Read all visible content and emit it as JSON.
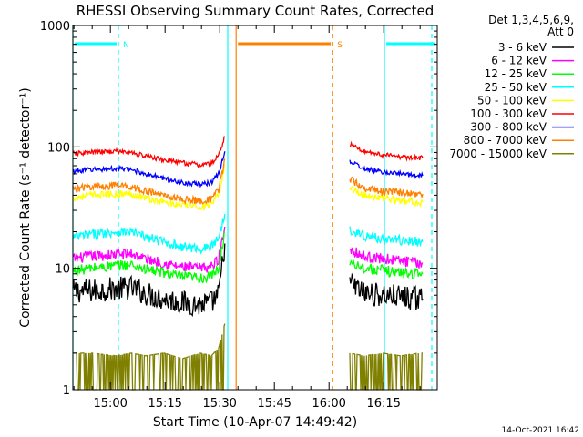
{
  "chart_data": {
    "type": "line",
    "title": "RHESSI Observing Summary Count Rates, Corrected",
    "xlabel": "Start Time (10-Apr-07 14:49:42)",
    "ylabel": "Corrected Count Rate (s⁻¹ detector⁻¹)",
    "yscale": "log",
    "ylim": [
      1,
      1000
    ],
    "xlim_minutes": [
      0,
      100
    ],
    "x_ticks": [
      {
        "t": 10.3,
        "label": "15:00"
      },
      {
        "t": 25.3,
        "label": "15:15"
      },
      {
        "t": 40.3,
        "label": "15:30"
      },
      {
        "t": 55.3,
        "label": "15:45"
      },
      {
        "t": 70.3,
        "label": "16:00"
      },
      {
        "t": 85.3,
        "label": "16:15"
      }
    ],
    "y_ticks": [
      {
        "v": 1,
        "label": "1"
      },
      {
        "v": 10,
        "label": "10"
      },
      {
        "v": 100,
        "label": "100"
      },
      {
        "v": 1000,
        "label": "1000"
      }
    ],
    "legend": {
      "header": [
        "Det 1,3,4,5,6,9,",
        "Att 0"
      ],
      "position": "top-right"
    },
    "series": [
      {
        "name": "3 - 6 keV",
        "color": "#000000",
        "t": [
          0,
          5,
          12,
          16,
          20,
          25,
          30,
          35,
          38,
          40,
          41.7,
          73.5,
          76,
          80,
          85,
          90,
          95,
          96
        ],
        "values": [
          6.5,
          6.5,
          6.8,
          6.9,
          6.2,
          5.6,
          5.2,
          5.0,
          5.2,
          6,
          16,
          null,
          7.5,
          6.2,
          6.0,
          5.8,
          5.6,
          5.6
        ]
      },
      {
        "name": "6 - 12 keV",
        "color": "#ff00ff",
        "t": [
          0,
          5,
          12,
          16,
          20,
          25,
          30,
          35,
          38,
          40,
          41.7,
          73.5,
          76,
          80,
          85,
          90,
          95,
          96
        ],
        "values": [
          12,
          12.5,
          13,
          13.2,
          12,
          11,
          10.2,
          10,
          10.3,
          12,
          22,
          null,
          14.5,
          12.5,
          12,
          11.5,
          11,
          11
        ]
      },
      {
        "name": "12 - 25 keV",
        "color": "#00ff00",
        "t": [
          0,
          5,
          12,
          16,
          20,
          25,
          30,
          35,
          38,
          40,
          41.7,
          73.5,
          76,
          80,
          85,
          90,
          95,
          96
        ],
        "values": [
          9.5,
          10,
          10.5,
          10.7,
          9.8,
          9.2,
          8.5,
          8.3,
          8.5,
          10,
          20,
          null,
          11.5,
          10,
          9.6,
          9.2,
          9,
          9
        ]
      },
      {
        "name": "25 - 50 keV",
        "color": "#00ffff",
        "t": [
          0,
          5,
          12,
          16,
          20,
          25,
          30,
          35,
          38,
          40,
          41.7,
          73.5,
          76,
          80,
          85,
          90,
          95,
          96
        ],
        "values": [
          18,
          19,
          20,
          20,
          18,
          16.5,
          15,
          14.5,
          15,
          18,
          28,
          null,
          21,
          18.5,
          17.5,
          17,
          16.5,
          16.5
        ]
      },
      {
        "name": "50 - 100 keV",
        "color": "#ffff00",
        "t": [
          0,
          5,
          12,
          16,
          20,
          25,
          30,
          35,
          38,
          40,
          41.7,
          73.5,
          76,
          80,
          85,
          90,
          95,
          96
        ],
        "values": [
          38,
          40,
          41,
          41,
          38,
          35,
          33,
          32,
          33,
          40,
          72,
          null,
          46,
          40,
          38,
          36,
          35,
          35
        ]
      },
      {
        "name": "100 - 300 keV",
        "color": "#ff0000",
        "t": [
          0,
          5,
          12,
          16,
          20,
          25,
          30,
          35,
          38,
          40,
          41.7,
          73.5,
          76,
          80,
          85,
          90,
          95,
          96
        ],
        "values": [
          88,
          90,
          92,
          90,
          84,
          78,
          74,
          71,
          73,
          85,
          122,
          null,
          105,
          92,
          86,
          83,
          81,
          81
        ]
      },
      {
        "name": "300 - 800 keV",
        "color": "#0000ff",
        "t": [
          0,
          5,
          12,
          16,
          20,
          25,
          30,
          35,
          38,
          40,
          41.7,
          73.5,
          76,
          80,
          85,
          90,
          95,
          96
        ],
        "values": [
          63,
          65,
          66,
          65,
          60,
          55,
          51,
          49,
          51,
          60,
          92,
          null,
          76,
          66,
          62,
          60,
          58,
          58
        ]
      },
      {
        "name": "800 - 7000 keV",
        "color": "#ff8000",
        "t": [
          0,
          5,
          12,
          16,
          20,
          25,
          30,
          35,
          38,
          40,
          41.7,
          73.5,
          76,
          80,
          85,
          90,
          95,
          96
        ],
        "values": [
          45,
          47,
          48,
          47,
          43,
          40,
          37,
          36,
          37,
          44,
          80,
          null,
          54,
          46,
          43,
          42,
          41,
          41
        ]
      },
      {
        "name": "7000 - 15000 keV",
        "color": "#808000",
        "t": [
          0,
          5,
          12,
          16,
          20,
          25,
          30,
          35,
          38,
          40,
          41.7,
          73.5,
          76,
          80,
          85,
          90,
          95,
          96
        ],
        "values": [
          2,
          2,
          1.9,
          2,
          1.9,
          2,
          1.8,
          2,
          1.9,
          2.2,
          3.5,
          null,
          2,
          1.9,
          2,
          1.9,
          2,
          2
        ]
      }
    ],
    "annotations": [
      {
        "type": "night_interval_line",
        "label": "N",
        "color": "#00ffff",
        "t_start": 0,
        "t_end": 12.5
      },
      {
        "type": "night_interval_line",
        "label": "",
        "color": "#00ffff",
        "t_start": 85.5,
        "t_end": 100
      },
      {
        "type": "saa_interval_line",
        "label": "S",
        "color": "#ff8000",
        "t_start": 44.8,
        "t_end": 71.3
      }
    ],
    "vertical_lines": [
      {
        "t": 0,
        "color": "#00ffff",
        "dash": false
      },
      {
        "t": 42.5,
        "color": "#00ffff",
        "dash": false
      },
      {
        "t": 85.5,
        "color": "#00ffff",
        "dash": false
      },
      {
        "t": 12.5,
        "color": "#00ffff",
        "dash": true
      },
      {
        "t": 98.5,
        "color": "#00ffff",
        "dash": true
      },
      {
        "t": 44.8,
        "color": "#ff8000",
        "dash": false
      },
      {
        "t": 71.3,
        "color": "#ff8000",
        "dash": true
      }
    ],
    "footer": "14-Oct-2021 16:42"
  }
}
